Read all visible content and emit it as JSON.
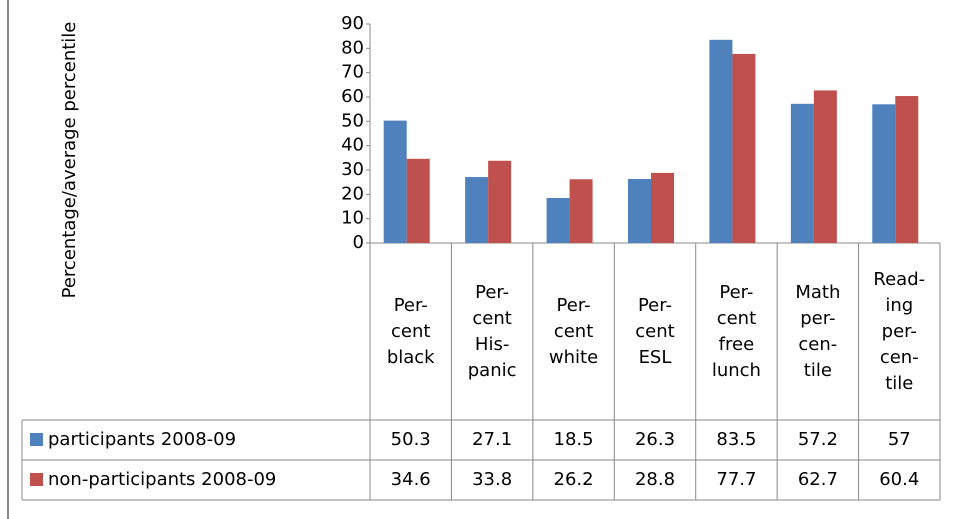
{
  "chart_data": {
    "type": "bar",
    "y_axis_label": "Percentage/average percentile",
    "categories": [
      "Per-\ncent\nblack",
      "Per-\ncent\nHis-\npanic",
      "Per-\ncent\nwhite",
      "Per-\ncent\nESL",
      "Per-\ncent\nfree\nlunch",
      "Math\nper-\ncen-\ntile",
      "Read-\ning\nper-\ncen-\ntile"
    ],
    "series": [
      {
        "name": "participants 2008-09",
        "color": "#4f81bd",
        "values": [
          50.3,
          27.1,
          18.5,
          26.3,
          83.5,
          57.2,
          57
        ]
      },
      {
        "name": "non-participants 2008-09",
        "color": "#c0504d",
        "values": [
          34.6,
          33.8,
          26.2,
          28.8,
          77.7,
          62.7,
          60.4
        ]
      }
    ],
    "ylim": [
      0,
      90
    ],
    "yticks": [
      0,
      10,
      20,
      30,
      40,
      50,
      60,
      70,
      80,
      90
    ],
    "grid": false
  }
}
